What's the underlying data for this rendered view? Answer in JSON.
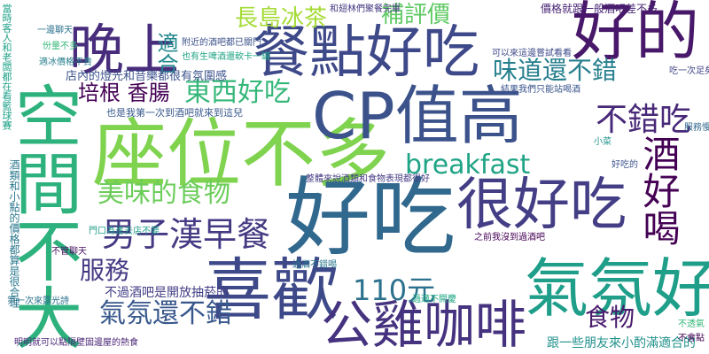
{
  "words": [
    {
      "text": "座位不多",
      "color": "#7fd34e"
    },
    {
      "text": "好吃",
      "color": "#31688e"
    },
    {
      "text": "CP值高",
      "color": "#3b528b"
    },
    {
      "text": "餐點好吃",
      "color": "#3e4989"
    },
    {
      "text": "空間不大",
      "color": "#2db27d"
    },
    {
      "text": "喜歡",
      "color": "#3e4989"
    },
    {
      "text": "很好吃",
      "color": "#433e85"
    },
    {
      "text": "公雞咖啡",
      "color": "#46337f"
    },
    {
      "text": "氣氛好",
      "color": "#1f9e89"
    },
    {
      "text": "好的",
      "color": "#48186a"
    },
    {
      "text": "晚上",
      "color": "#472d7b"
    },
    {
      "text": "男子漢早餐",
      "color": "#443a83"
    },
    {
      "text": "氣氛還不錯",
      "color": "#38588c"
    },
    {
      "text": "breakfast",
      "color": "#20a486"
    },
    {
      "text": "東西好吃",
      "color": "#35b779"
    },
    {
      "text": "美味的食物",
      "color": "#6ccd5a"
    },
    {
      "text": "味道還不錯",
      "color": "#277f8e"
    },
    {
      "text": "培根 香腸",
      "color": "#440154"
    },
    {
      "text": "不錯吃",
      "color": "#482878"
    },
    {
      "text": "酒好喝",
      "color": "#440154"
    },
    {
      "text": "110元",
      "color": "#2c728e"
    },
    {
      "text": "服務",
      "color": "#443983"
    },
    {
      "text": "食物",
      "color": "#481a6c"
    },
    {
      "text": "補評價",
      "color": "#5ec962"
    },
    {
      "text": "長島冰茶",
      "color": "#a5db36"
    },
    {
      "text": "適合",
      "color": "#23898e"
    },
    {
      "text": "跟一些朋友來小酌滿適合的",
      "color": "#21918c"
    },
    {
      "text": "不過酒吧是開放抽菸的",
      "color": "#433e85"
    },
    {
      "text": "店內的燈光和音樂都很有氛圍感",
      "color": "#3b528b"
    },
    {
      "text": "酒類和小點的價格都算是很合理",
      "color": "#2a788e"
    },
    {
      "text": "當時客人和老闆都在看籃球賽",
      "color": "#1fa188"
    },
    {
      "text": "價格就跟一般酒吧差不多",
      "color": "#482475"
    },
    {
      "text": "也是我第一次到酒吧就來到這兒",
      "color": "#38598c"
    },
    {
      "text": "結果我們只能站喝酒",
      "color": "#3a548c"
    },
    {
      "text": "整體來說酒類和食物表現都很好",
      "color": "#443b84"
    },
    {
      "text": "之前我沒到過酒吧",
      "color": "#440154"
    },
    {
      "text": "過酒不錯喝",
      "color": "#2a788e"
    },
    {
      "text": "過適不開慶",
      "color": "#22a884"
    },
    {
      "text": "服務慢",
      "color": "#31688e"
    },
    {
      "text": "好吃的",
      "color": "#3b528b"
    },
    {
      "text": "一邊聊天",
      "color": "#2c728e"
    },
    {
      "text": "份量不多",
      "color": "#35b779"
    },
    {
      "text": "適冰價格不貴",
      "color": "#277f8e"
    },
    {
      "text": "附近的酒吧都已關門",
      "color": "#3b528b"
    },
    {
      "text": "也有生啤酒還軟卡一罐",
      "color": "#20a486"
    },
    {
      "text": "和翅林們聚餐完畢",
      "color": "#443983"
    },
    {
      "text": "不管聊天",
      "color": "#471063"
    },
    {
      "text": "不透氣",
      "color": "#35b779"
    },
    {
      "text": "不會點",
      "color": "#440154"
    },
    {
      "text": "可以來這邊嘗試看看",
      "color": "#3e4989"
    },
    {
      "text": "第一次來露光詩",
      "color": "#2c728e"
    },
    {
      "text": "明明就可以點隔壁固邊屋的熱食",
      "color": "#482475"
    },
    {
      "text": "門口為進去店不要",
      "color": "#1f9e89"
    },
    {
      "text": "吃一次足矣",
      "color": "#414487"
    },
    {
      "text": "小菜",
      "color": "#21918c"
    }
  ]
}
